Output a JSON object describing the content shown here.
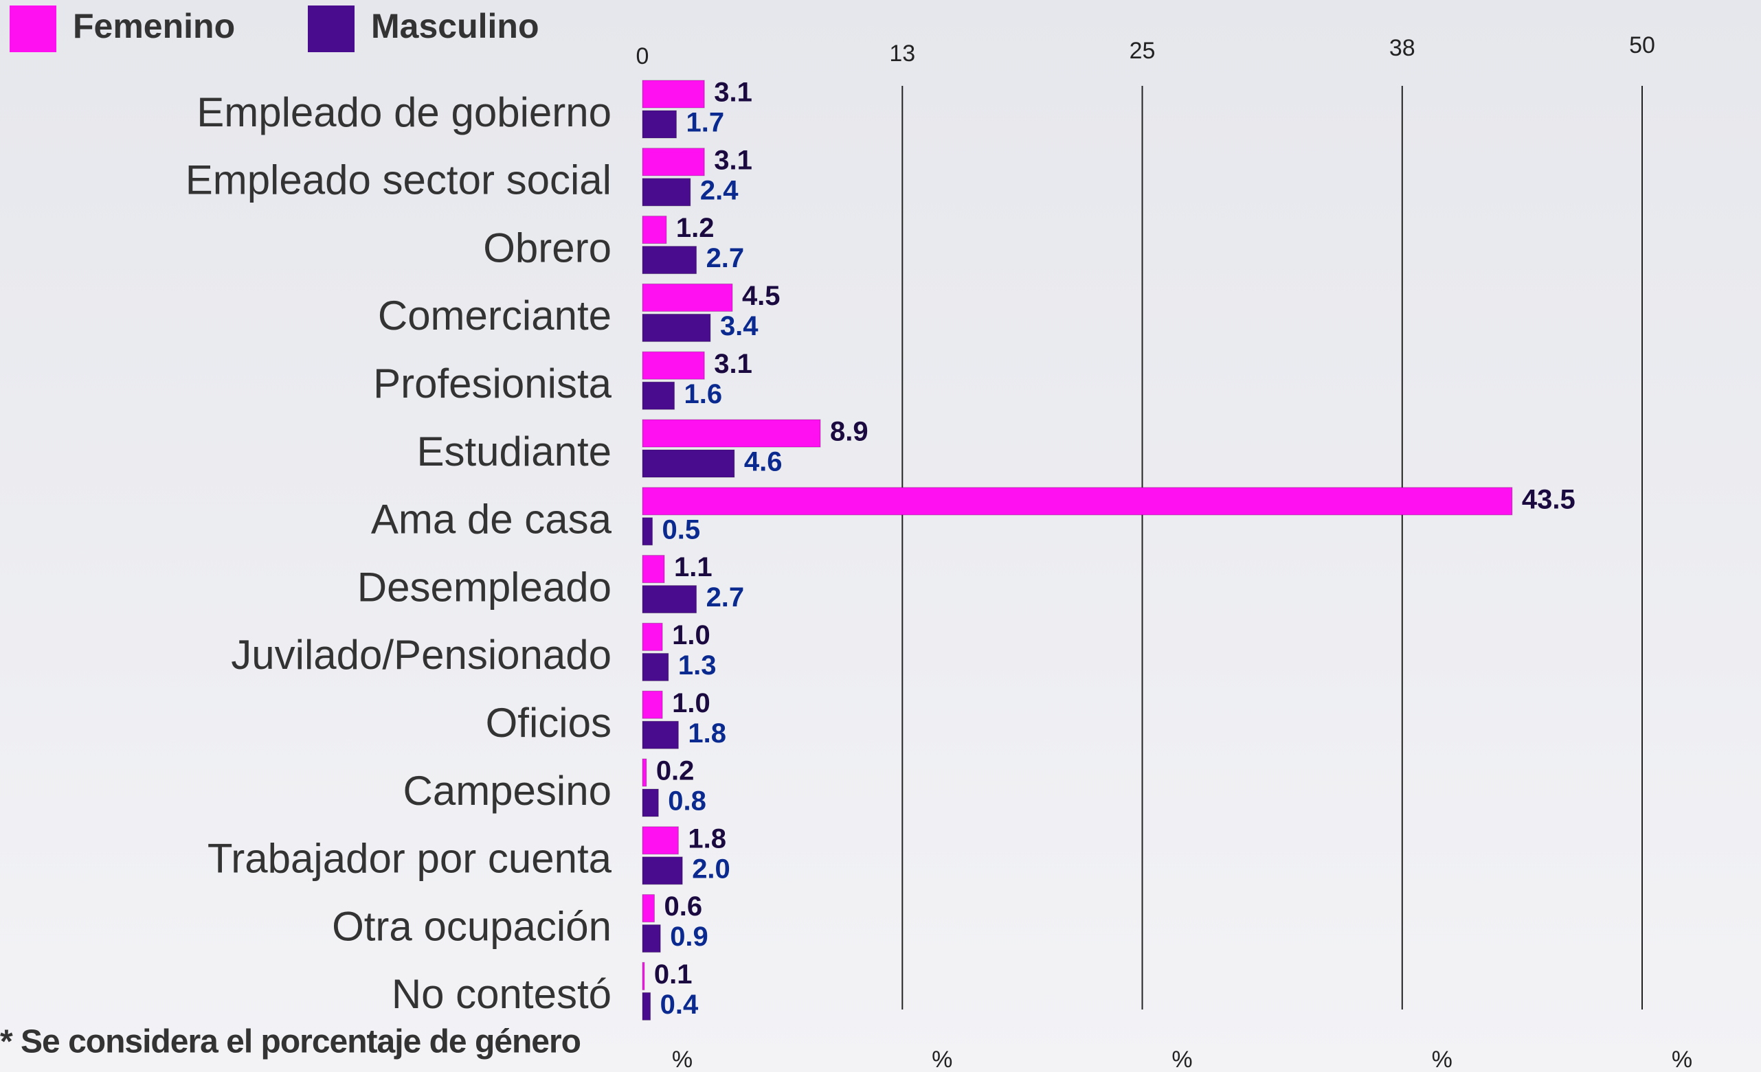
{
  "chart_data": {
    "type": "hbar",
    "categories": [
      "Empleado de gobierno",
      "Empleado sector social",
      "Obrero",
      "Comerciante",
      "Profesionista",
      "Estudiante",
      "Ama de casa",
      "Desempleado",
      "Juvilado/Pensionado",
      "Oficios",
      "Campesino",
      "Trabajador por cuenta",
      "Otra ocupación",
      "No contestó"
    ],
    "series": [
      {
        "name": "Femenino",
        "color": "#ff10f0",
        "values": [
          3.1,
          3.1,
          1.2,
          4.5,
          3.1,
          8.9,
          43.5,
          1.1,
          1.0,
          1.0,
          0.2,
          1.8,
          0.6,
          0.1
        ],
        "value_labels": [
          "3.1",
          "3.1",
          "1.2",
          "4.5",
          "3.1",
          "8.9",
          "43.5",
          "1.1",
          "1.0",
          "1.0",
          "0.2",
          "1.8",
          "0.6",
          "0.1"
        ]
      },
      {
        "name": "Masculino",
        "color": "#4a0c8f",
        "values": [
          1.7,
          2.4,
          2.7,
          3.4,
          1.6,
          4.6,
          0.5,
          2.7,
          1.3,
          1.8,
          0.8,
          2.0,
          0.9,
          0.4
        ],
        "value_labels": [
          "1.7",
          "2.4",
          "2.7",
          "3.4",
          "1.6",
          "4.6",
          "0.5",
          "2.7",
          "1.3",
          "1.8",
          "0.8",
          "2.0",
          "0.9",
          "0.4"
        ]
      }
    ],
    "xlim": [
      0,
      50
    ],
    "xticks": [
      0,
      13,
      25,
      38,
      50
    ],
    "xlabel": "%",
    "grid": true,
    "legend": "top-left",
    "footnote": "* Se considera el porcentaje de género"
  }
}
